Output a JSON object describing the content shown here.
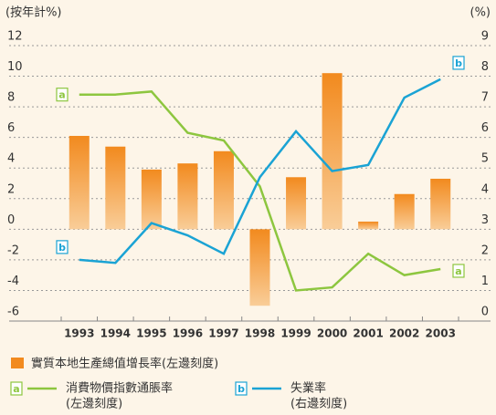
{
  "chart_data": {
    "type": "bar",
    "y_label": "(按年計%)",
    "y2_label": "(%)",
    "categories": [
      "1993",
      "1994",
      "1995",
      "1996",
      "1997",
      "1998",
      "1999",
      "2000",
      "2001",
      "2002",
      "2003"
    ],
    "ylim": [
      -6,
      12
    ],
    "yticks": [
      -6,
      -4,
      -2,
      0,
      2,
      4,
      6,
      8,
      10,
      12
    ],
    "y2lim": [
      0,
      9
    ],
    "y2ticks": [
      0,
      1,
      2,
      3,
      4,
      5,
      6,
      7,
      8,
      9
    ],
    "grid": true,
    "series": [
      {
        "name": "實質本地生產總值增長率(左邊刻度)",
        "type": "bar",
        "color": "#f28a1e",
        "values": [
          6.1,
          5.4,
          3.9,
          4.3,
          5.1,
          -5.0,
          3.4,
          10.2,
          0.5,
          2.3,
          3.3
        ]
      },
      {
        "name": "消費物價指數通脹率",
        "note": "(左邊刻度)",
        "tag": "a",
        "type": "line",
        "color": "#8dc63f",
        "values": [
          8.8,
          8.8,
          9.0,
          6.3,
          5.8,
          2.8,
          -4.0,
          -3.8,
          -1.6,
          -3.0,
          -2.6
        ]
      },
      {
        "name": "失業率",
        "note": "(右邊刻度)",
        "tag": "b",
        "type": "line",
        "axis": "y2",
        "color": "#1aa3d4",
        "values": [
          2.0,
          1.9,
          3.2,
          2.8,
          2.2,
          4.7,
          6.2,
          4.9,
          5.1,
          7.3,
          7.9
        ]
      }
    ]
  }
}
